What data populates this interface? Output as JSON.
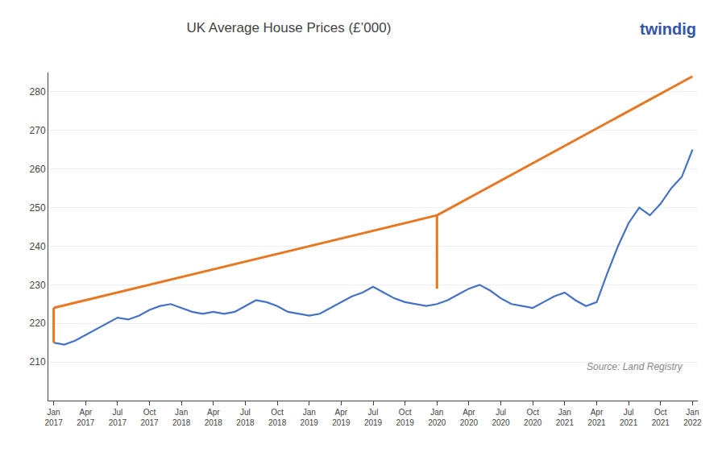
{
  "chart_data": {
    "type": "line",
    "title": "UK Average House Prices (£’000)",
    "annotations": [
      "Source: Land Registry",
      "twindig"
    ],
    "categories": [
      "Jan\n2017",
      null,
      null,
      "Apr\n2017",
      null,
      null,
      "Jul\n2017",
      null,
      null,
      "Oct\n2017",
      null,
      null,
      "Jan\n2018",
      null,
      null,
      "Apr\n2018",
      null,
      null,
      "Jul\n2018",
      null,
      null,
      "Oct\n2018",
      null,
      null,
      "Jan\n2019",
      null,
      null,
      "Apr\n2019",
      null,
      null,
      "Jul\n2019",
      null,
      null,
      "Oct\n2019",
      null,
      null,
      "Jan\n2020",
      null,
      null,
      "Apr\n2020",
      null,
      null,
      "Jul\n2020",
      null,
      null,
      "Oct\n2020",
      null,
      null,
      "Jan\n2021",
      null,
      null,
      "Apr\n2021",
      null,
      null,
      "Jul\n2021",
      null,
      null,
      "Oct\n2021",
      null,
      null,
      "Jan\n2022"
    ],
    "series": [
      {
        "color": "#4472C4",
        "values": [
          215.0,
          214.5,
          215.5,
          217.0,
          218.5,
          220.0,
          221.5,
          221.0,
          222.0,
          223.5,
          224.5,
          225.0,
          224.0,
          223.0,
          222.5,
          223.0,
          222.5,
          223.0,
          224.5,
          226.0,
          225.5,
          224.5,
          223.0,
          222.5,
          222.0,
          222.5,
          224.0,
          225.5,
          227.0,
          228.0,
          229.5,
          228.0,
          226.5,
          225.5,
          225.0,
          224.5,
          225.0,
          226.0,
          227.5,
          229.0,
          230.0,
          228.5,
          226.5,
          225.0,
          224.5,
          224.0,
          225.5,
          227.0,
          228.0,
          226.0,
          224.5,
          225.5,
          233.0,
          240.0,
          246.0,
          250.0,
          248.0,
          251.0,
          255.0,
          258.0,
          265.0
        ]
      },
      {
        "color": "#E87722",
        "x": [
          "Jan\n2017",
          "Jan\n2020"
        ],
        "values": [
          224.0,
          248.0
        ]
      },
      {
        "color": "#E87722",
        "x": [
          "Jan\n2020",
          "Jan\n2022"
        ],
        "values": [
          248.0,
          284.0
        ]
      },
      {
        "color": "#E87722",
        "x": [
          "Jan\n2017",
          "Jan\n2017"
        ],
        "values": [
          215.0,
          224.0
        ]
      },
      {
        "color": "#E87722",
        "x": [
          "Jan\n2020",
          "Jan\n2020"
        ],
        "values": [
          229.0,
          248.0
        ]
      }
    ],
    "ylim": [
      200,
      285
    ],
    "yticks": [
      210,
      220,
      230,
      240,
      250,
      260,
      270,
      280
    ],
    "grid": true
  }
}
